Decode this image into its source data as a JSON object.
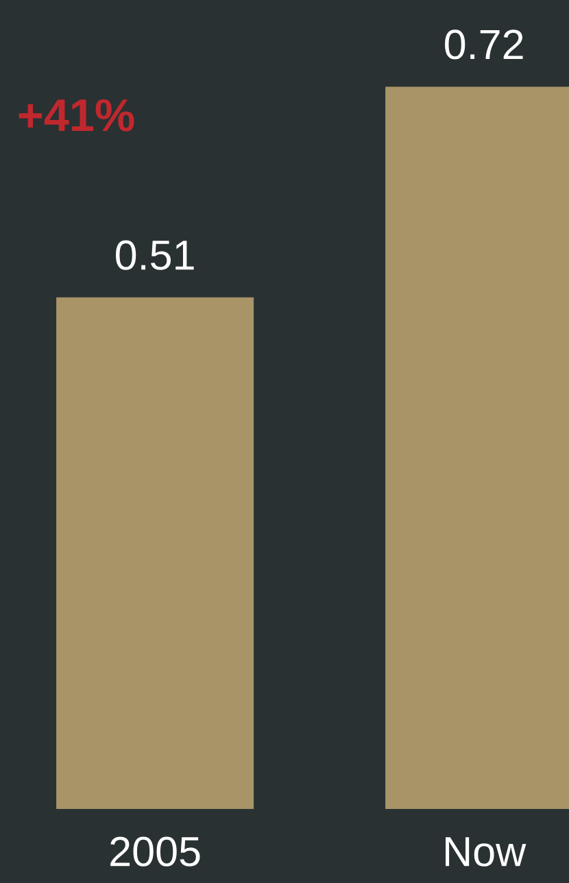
{
  "chart_data": {
    "type": "bar",
    "categories": [
      "2005",
      "Now"
    ],
    "values": [
      0.51,
      0.72
    ],
    "color": "#a89467",
    "data_labels": true,
    "grid": false,
    "annotations": [
      "+41%"
    ]
  }
}
